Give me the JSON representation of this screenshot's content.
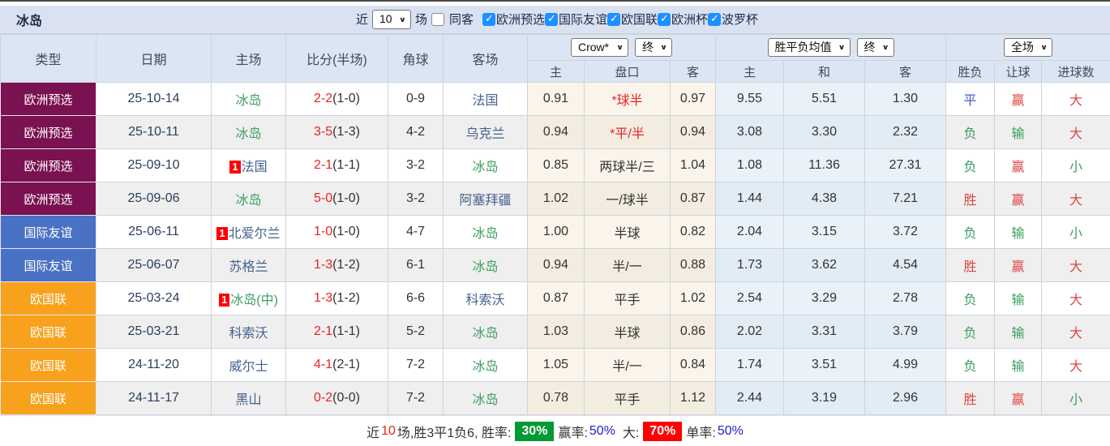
{
  "title": "冰岛",
  "toolbar": {
    "recent_label": "近",
    "recent_value": "10",
    "games_label": "场",
    "same_away_label": "同客",
    "same_away_checked": false,
    "filters": [
      {
        "label": "欧洲预选",
        "checked": true
      },
      {
        "label": "国际友谊",
        "checked": true
      },
      {
        "label": "欧国联",
        "checked": true
      },
      {
        "label": "欧洲杯",
        "checked": true
      },
      {
        "label": "波罗杯",
        "checked": true
      }
    ]
  },
  "table": {
    "columns": [
      "类型",
      "日期",
      "主场",
      "比分(半场)",
      "角球",
      "客场"
    ],
    "odds_company_select": "Crow*",
    "odds_state_select": "终",
    "avg_select": "胜平负均值",
    "avg_state_select": "终",
    "scope_select": "全场",
    "sub_headers": [
      "主",
      "盘口",
      "客",
      "主",
      "和",
      "客",
      "胜负",
      "让球",
      "进球数"
    ],
    "rows": [
      {
        "type": "欧洲预选",
        "date": "25-10-14",
        "home": "冰岛",
        "home_focus": true,
        "home_badge": "",
        "score": "2-2",
        "half": "(1-0)",
        "corners": "0-9",
        "away": "法国",
        "away_focus": false,
        "odds_home": "0.91",
        "handicap": "*球半",
        "handicap_red": true,
        "odds_away": "0.97",
        "avg_home": "9.55",
        "avg_draw": "5.51",
        "avg_away": "1.30",
        "result": "平",
        "let_result": "赢",
        "goals": "大"
      },
      {
        "type": "欧洲预选",
        "date": "25-10-11",
        "home": "冰岛",
        "home_focus": true,
        "home_badge": "",
        "score": "3-5",
        "half": "(1-3)",
        "corners": "4-2",
        "away": "乌克兰",
        "away_focus": false,
        "odds_home": "0.94",
        "handicap": "*平/半",
        "handicap_red": true,
        "odds_away": "0.94",
        "avg_home": "3.08",
        "avg_draw": "3.30",
        "avg_away": "2.32",
        "result": "负",
        "let_result": "输",
        "goals": "大"
      },
      {
        "type": "欧洲预选",
        "date": "25-09-10",
        "home": "法国",
        "home_focus": false,
        "home_badge": "1",
        "score": "2-1",
        "half": "(1-1)",
        "corners": "3-2",
        "away": "冰岛",
        "away_focus": true,
        "odds_home": "0.85",
        "handicap": "两球半/三",
        "handicap_red": false,
        "odds_away": "1.04",
        "avg_home": "1.08",
        "avg_draw": "11.36",
        "avg_away": "27.31",
        "result": "负",
        "let_result": "赢",
        "goals": "小"
      },
      {
        "type": "欧洲预选",
        "date": "25-09-06",
        "home": "冰岛",
        "home_focus": true,
        "home_badge": "",
        "score": "5-0",
        "half": "(1-0)",
        "corners": "3-2",
        "away": "阿塞拜疆",
        "away_focus": false,
        "odds_home": "1.02",
        "handicap": "一/球半",
        "handicap_red": false,
        "odds_away": "0.87",
        "avg_home": "1.44",
        "avg_draw": "4.38",
        "avg_away": "7.21",
        "result": "胜",
        "let_result": "赢",
        "goals": "大"
      },
      {
        "type": "国际友谊",
        "date": "25-06-11",
        "home": "北爱尔兰",
        "home_focus": false,
        "home_badge": "1",
        "score": "1-0",
        "half": "(1-0)",
        "corners": "4-7",
        "away": "冰岛",
        "away_focus": true,
        "odds_home": "1.00",
        "handicap": "半球",
        "handicap_red": false,
        "odds_away": "0.82",
        "avg_home": "2.04",
        "avg_draw": "3.15",
        "avg_away": "3.72",
        "result": "负",
        "let_result": "输",
        "goals": "小"
      },
      {
        "type": "国际友谊",
        "date": "25-06-07",
        "home": "苏格兰",
        "home_focus": false,
        "home_badge": "",
        "score": "1-3",
        "half": "(1-2)",
        "corners": "6-1",
        "away": "冰岛",
        "away_focus": true,
        "odds_home": "0.94",
        "handicap": "半/一",
        "handicap_red": false,
        "odds_away": "0.88",
        "avg_home": "1.73",
        "avg_draw": "3.62",
        "avg_away": "4.54",
        "result": "胜",
        "let_result": "赢",
        "goals": "大"
      },
      {
        "type": "欧国联",
        "date": "25-03-24",
        "home": "冰岛(中)",
        "home_focus": true,
        "home_badge": "1",
        "score": "1-3",
        "half": "(1-2)",
        "corners": "6-6",
        "away": "科索沃",
        "away_focus": false,
        "odds_home": "0.87",
        "handicap": "平手",
        "handicap_red": false,
        "odds_away": "1.02",
        "avg_home": "2.54",
        "avg_draw": "3.29",
        "avg_away": "2.78",
        "result": "负",
        "let_result": "输",
        "goals": "大"
      },
      {
        "type": "欧国联",
        "date": "25-03-21",
        "home": "科索沃",
        "home_focus": false,
        "home_badge": "",
        "score": "2-1",
        "half": "(1-1)",
        "corners": "5-2",
        "away": "冰岛",
        "away_focus": true,
        "odds_home": "1.03",
        "handicap": "半球",
        "handicap_red": false,
        "odds_away": "0.86",
        "avg_home": "2.02",
        "avg_draw": "3.31",
        "avg_away": "3.79",
        "result": "负",
        "let_result": "输",
        "goals": "大"
      },
      {
        "type": "欧国联",
        "date": "24-11-20",
        "home": "威尔士",
        "home_focus": false,
        "home_badge": "",
        "score": "4-1",
        "half": "(2-1)",
        "corners": "7-2",
        "away": "冰岛",
        "away_focus": true,
        "odds_home": "1.05",
        "handicap": "半/一",
        "handicap_red": false,
        "odds_away": "0.84",
        "avg_home": "1.74",
        "avg_draw": "3.51",
        "avg_away": "4.99",
        "result": "负",
        "let_result": "输",
        "goals": "大"
      },
      {
        "type": "欧国联",
        "date": "24-11-17",
        "home": "黑山",
        "home_focus": false,
        "home_badge": "",
        "score": "0-2",
        "half": "(0-0)",
        "corners": "7-2",
        "away": "冰岛",
        "away_focus": true,
        "odds_home": "0.78",
        "handicap": "平手",
        "handicap_red": false,
        "odds_away": "1.12",
        "avg_home": "2.44",
        "avg_draw": "3.19",
        "avg_away": "2.96",
        "result": "胜",
        "let_result": "赢",
        "goals": "小"
      }
    ]
  },
  "footer": {
    "prefix": "近",
    "recent_count": "10",
    "summary": "场,胜3平1负6, 胜率:",
    "win_rate": "30%",
    "odds_win_label": "赢率:",
    "odds_win_rate": "50%",
    "big_label": "大:",
    "big_rate": "70%",
    "single_label": "单率:",
    "single_rate": "50%"
  },
  "colors": {
    "type": {
      "欧洲预选": "#7a1150",
      "国际友谊": "#4a72c4",
      "欧国联": "#f7a11c"
    },
    "status": {
      "胜": "#e04444",
      "平": "#4a55cf",
      "负": "#3a9e5f",
      "赢": "#e04444",
      "输": "#3a9e5f",
      "大": "#e04444",
      "小": "#3a9e5f"
    },
    "score_red": "#ee2222",
    "handicap_red": "#ee2222",
    "focus_team_green": "#3f9e63",
    "other_team_navy": "#44618c",
    "badge_red": "#fe0000",
    "win_rate_bg": "#009933",
    "big_rate_bg": "#fe0000",
    "rate_blue": "#2020cc",
    "count_red": "#ee2222",
    "checkbox_blue": "#1e90ff"
  }
}
